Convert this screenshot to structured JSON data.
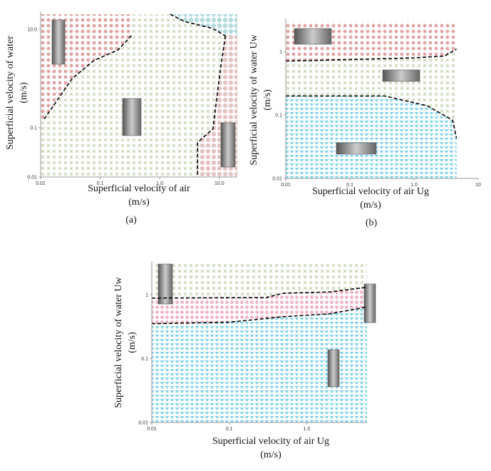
{
  "chart_data": [
    {
      "type": "regime-map",
      "panel_label": "(a)",
      "xlabel": [
        "Superficial velocity of air",
        "(m/s)"
      ],
      "ylabel": [
        "Superficial velocity of water",
        "(m/s)"
      ],
      "log_x": true,
      "log_y": true,
      "xlim": [
        0.01,
        20
      ],
      "ylim": [
        0.01,
        20
      ],
      "xticks": [
        0.01,
        0.1,
        {
          "value": 1,
          "label": "1.0"
        },
        {
          "value": 10,
          "label": "10.0"
        }
      ],
      "yticks": [
        0.01,
        0.1,
        {
          "value": 10,
          "label": "10.0"
        }
      ],
      "boundaries": [
        {
          "x": [
            0.0115,
            0.034,
            0.078,
            0.2,
            0.35
          ],
          "y": [
            0.15,
            1.0,
            2.3,
            3.8,
            7.8
          ]
        },
        {
          "x": [
            1.5,
            2.6,
            7.8,
            12.6
          ],
          "y": [
            20,
            14.3,
            10.3,
            7.3
          ]
        },
        {
          "x": [
            12.6,
            10.3,
            7.8,
            4.3,
            4.3
          ],
          "y": [
            7.3,
            1.38,
            0.095,
            0.05,
            0.01
          ]
        }
      ]
    },
    {
      "type": "regime-map",
      "panel_label": "(b)",
      "xlabel": [
        "Superficial velocity of air Ug",
        "(m/s)"
      ],
      "ylabel": [
        "Superficial velocity of water Uw",
        "(m/s)"
      ],
      "log_x": true,
      "log_y": true,
      "xlim": [
        0.01,
        10
      ],
      "ylim": [
        0.01,
        3
      ],
      "xticks": [
        0.01,
        0.1,
        {
          "value": 1,
          "label": "1.0"
        },
        10
      ],
      "yticks": [
        0.01,
        0.1,
        1
      ],
      "boundaries": [
        {
          "x": [
            0.01,
            0.1,
            1.0,
            3,
            4.6
          ],
          "y": [
            0.71,
            0.75,
            0.8,
            0.85,
            1.1
          ]
        },
        {
          "x": [
            0.01,
            0.35,
            1.6,
            4,
            4.6
          ],
          "y": [
            0.2,
            0.2,
            0.14,
            0.083,
            0.043
          ]
        }
      ]
    },
    {
      "type": "regime-map",
      "xlabel": [
        "Superficial velocity of air Ug",
        "(m/s)"
      ],
      "ylabel": [
        "Superficial velocity of water Uw",
        "(m/s)"
      ],
      "log_x": true,
      "log_y": true,
      "xlim": [
        0.01,
        6
      ],
      "ylim": [
        0.01,
        3
      ],
      "xticks": [
        0.01,
        0.1,
        {
          "value": 1,
          "label": "1.0"
        }
      ],
      "yticks": [
        0.01,
        0.1,
        1
      ],
      "boundaries": [
        {
          "x": [
            0.01,
            0.3,
            0.5,
            2,
            6
          ],
          "y": [
            0.88,
            0.9,
            1.05,
            1.1,
            1.3
          ]
        },
        {
          "x": [
            0.01,
            0.1,
            0.5,
            2,
            6
          ],
          "y": [
            0.35,
            0.37,
            0.45,
            0.5,
            0.64
          ]
        }
      ]
    }
  ]
}
